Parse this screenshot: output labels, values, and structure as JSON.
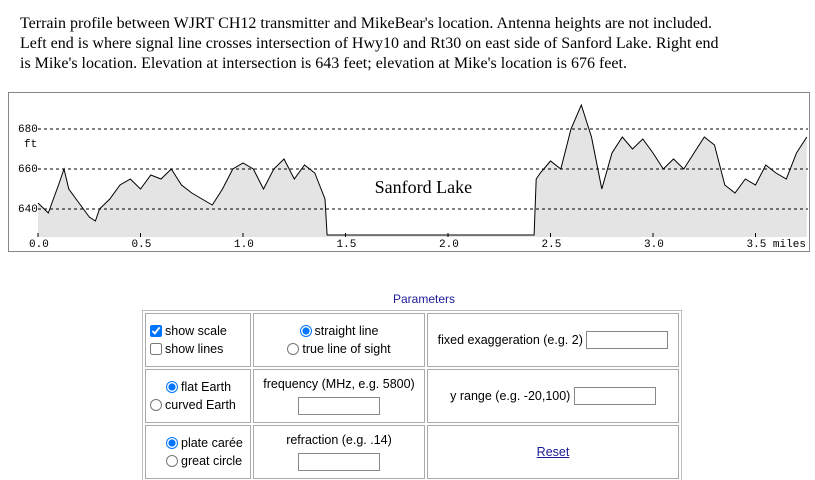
{
  "header": {
    "lines": [
      "Terrain profile between WJRT CH12 transmitter and MikeBear's location. Antenna heights are not included.",
      "Left end is where signal line crosses intersection of Hwy10 and Rt30 on east side of Sanford Lake.  Right end",
      "is Mike's location. Elevation at intersection is 643 feet; elevation at Mike's location is 676 feet."
    ]
  },
  "chart_data": {
    "type": "area",
    "annotation": "Sanford Lake",
    "y_unit": "ft",
    "color": "#e4e4e4",
    "line_color": "#000000",
    "grid": true,
    "x": [
      0,
      0.05,
      0.1,
      0.127,
      0.15,
      0.2,
      0.25,
      0.28,
      0.3,
      0.35,
      0.4,
      0.45,
      0.5,
      0.55,
      0.6,
      0.65,
      0.7,
      0.75,
      0.8,
      0.85,
      0.9,
      0.95,
      1.0,
      1.05,
      1.1,
      1.15,
      1.2,
      1.25,
      1.3,
      1.35,
      1.4,
      1.41,
      2.42,
      2.43,
      2.45,
      2.5,
      2.55,
      2.6,
      2.65,
      2.7,
      2.75,
      2.8,
      2.85,
      2.9,
      2.95,
      3.0,
      3.05,
      3.1,
      3.15,
      3.2,
      3.25,
      3.3,
      3.35,
      3.4,
      3.45,
      3.5,
      3.55,
      3.6,
      3.65,
      3.7,
      3.75
    ],
    "values": [
      643,
      638,
      652,
      660,
      650,
      643,
      636,
      634,
      640,
      645,
      652,
      655,
      650,
      657,
      655,
      660,
      652,
      648,
      645,
      642,
      650,
      660,
      663,
      660,
      650,
      660,
      665,
      655,
      662,
      658,
      645,
      627,
      627,
      655,
      658,
      664,
      660,
      680,
      692,
      676,
      650,
      668,
      676,
      670,
      675,
      668,
      660,
      665,
      660,
      668,
      676,
      672,
      652,
      648,
      655,
      652,
      662,
      658,
      655,
      668,
      676
    ],
    "xlim": [
      0,
      3.756
    ],
    "ylim": [
      626,
      698
    ],
    "xticks": [
      {
        "value": 0,
        "label": "0.0"
      },
      0.5,
      {
        "value": 1,
        "label": "1.0"
      },
      1.5,
      {
        "value": 2,
        "label": "2.0"
      },
      2.5,
      {
        "value": 3,
        "label": "3.0"
      },
      {
        "value": 3.5,
        "label": "3.5 miles"
      }
    ],
    "yticks": [
      640,
      660,
      680
    ]
  },
  "form": {
    "title": "Parameters",
    "show_scale": {
      "label": "show scale",
      "checked": true
    },
    "show_lines": {
      "label": "show lines",
      "checked": false
    },
    "straight_line": {
      "label": "straight line",
      "checked": true
    },
    "true_line_of_sight": {
      "label": "true line of sight",
      "checked": false
    },
    "fixed_exaggeration": "fixed exaggeration (e.g. 2)",
    "flat_earth": {
      "label": "flat Earth",
      "checked": true
    },
    "curved_earth": {
      "label": "curved Earth",
      "checked": false
    },
    "frequency": "frequency (MHz, e.g. 5800)",
    "y_range": "y range (e.g. -20,100)",
    "plate_caree": {
      "label": "plate carée",
      "checked": true
    },
    "great_circle": {
      "label": "great circle",
      "checked": false
    },
    "refraction": "refraction (e.g. .14)",
    "reset": "Reset"
  }
}
